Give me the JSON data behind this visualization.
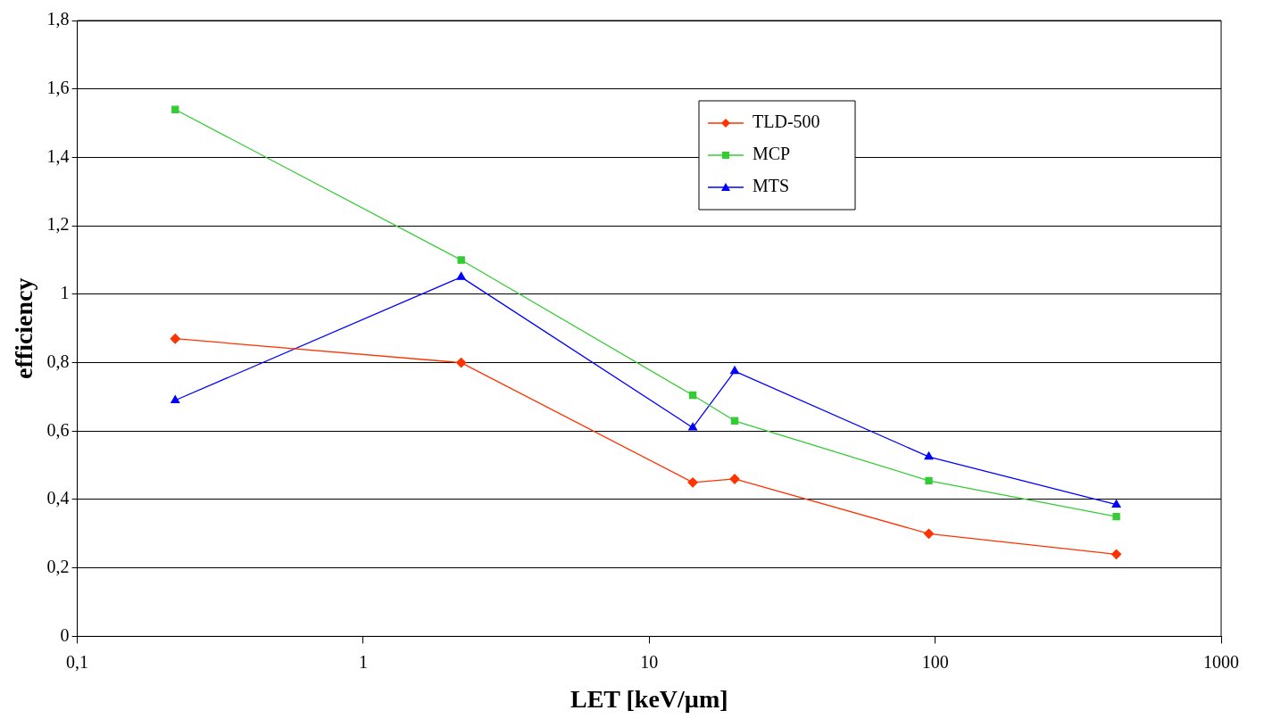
{
  "chart_data": {
    "type": "line",
    "xlabel": "LET [keV/µm]",
    "ylabel": "efficiency",
    "log": "x",
    "xlim": [
      0.1,
      1000
    ],
    "xticks": [
      {
        "value": 0.1,
        "label": "0,1"
      },
      1,
      10,
      100,
      1000
    ],
    "ylim": [
      0,
      1.8
    ],
    "yticks": [
      0,
      {
        "value": 0.2,
        "label": "0,2"
      },
      {
        "value": 0.4,
        "label": "0,4"
      },
      {
        "value": 0.6,
        "label": "0,6"
      },
      {
        "value": 0.8,
        "label": "0,8"
      },
      1,
      {
        "value": 1.2,
        "label": "1,2"
      },
      {
        "value": 1.4,
        "label": "1,4"
      },
      {
        "value": 1.6,
        "label": "1,6"
      },
      {
        "value": 1.8,
        "label": "1,8"
      }
    ],
    "grid": "y",
    "legend": "top right",
    "x": [
      0.22,
      2.2,
      14.2,
      19.9,
      95,
      430
    ],
    "series": [
      {
        "name": "TLD-500",
        "color": "#ff3300",
        "marker": "diamond",
        "values": [
          0.87,
          0.8,
          0.45,
          0.46,
          0.3,
          0.24
        ]
      },
      {
        "name": "MCP",
        "color": "#33cc33",
        "marker": "square",
        "values": [
          1.54,
          1.1,
          0.705,
          0.63,
          0.455,
          0.35
        ]
      },
      {
        "name": "MTS",
        "color": "#0000ff",
        "marker": "triangle",
        "values": [
          0.69,
          1.05,
          0.61,
          0.775,
          0.525,
          0.385
        ]
      }
    ]
  }
}
